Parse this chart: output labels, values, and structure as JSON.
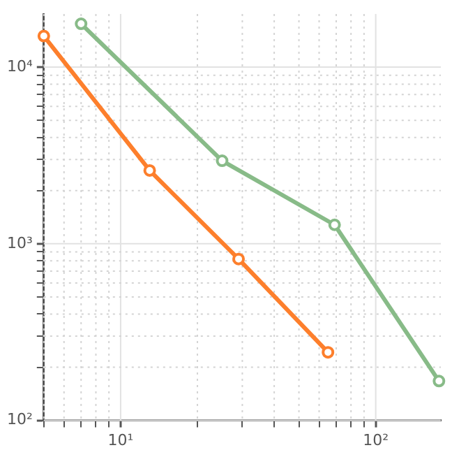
{
  "chart_data": {
    "type": "line",
    "log": "xy",
    "grid": true,
    "marker": "circle",
    "line_style": "solid",
    "xlim": [
      5,
      180
    ],
    "ylim": [
      100,
      20000
    ],
    "xticks": [
      {
        "value": 5,
        "label": null
      },
      {
        "value": 6,
        "label": null
      },
      {
        "value": 7,
        "label": null
      },
      {
        "value": 8,
        "label": null
      },
      {
        "value": 9,
        "label": null
      },
      {
        "value": 10,
        "label": "10¹"
      },
      {
        "value": 20,
        "label": null
      },
      {
        "value": 30,
        "label": null
      },
      {
        "value": 40,
        "label": null
      },
      {
        "value": 50,
        "label": null
      },
      {
        "value": 60,
        "label": null
      },
      {
        "value": 70,
        "label": null
      },
      {
        "value": 80,
        "label": null
      },
      {
        "value": 90,
        "label": null
      },
      {
        "value": 100,
        "label": "10²"
      }
    ],
    "yticks": [
      {
        "value": 100,
        "label": "10²"
      },
      {
        "value": 200,
        "label": null
      },
      {
        "value": 300,
        "label": null
      },
      {
        "value": 400,
        "label": null
      },
      {
        "value": 500,
        "label": null
      },
      {
        "value": 600,
        "label": null
      },
      {
        "value": 700,
        "label": null
      },
      {
        "value": 800,
        "label": null
      },
      {
        "value": 900,
        "label": null
      },
      {
        "value": 1000,
        "label": "10³"
      },
      {
        "value": 2000,
        "label": null
      },
      {
        "value": 3000,
        "label": null
      },
      {
        "value": 4000,
        "label": null
      },
      {
        "value": 5000,
        "label": null
      },
      {
        "value": 6000,
        "label": null
      },
      {
        "value": 7000,
        "label": null
      },
      {
        "value": 8000,
        "label": null
      },
      {
        "value": 9000,
        "label": null
      },
      {
        "value": 10000,
        "label": "10⁴"
      }
    ],
    "series": [
      {
        "color": "#fd7f2c",
        "x": [
          5,
          13,
          29,
          65
        ],
        "values": [
          15000,
          2600,
          820,
          243
        ]
      },
      {
        "color": "#88bb88",
        "x": [
          7,
          25,
          69,
          177
        ],
        "values": [
          17600,
          2950,
          1280,
          167
        ]
      }
    ]
  }
}
